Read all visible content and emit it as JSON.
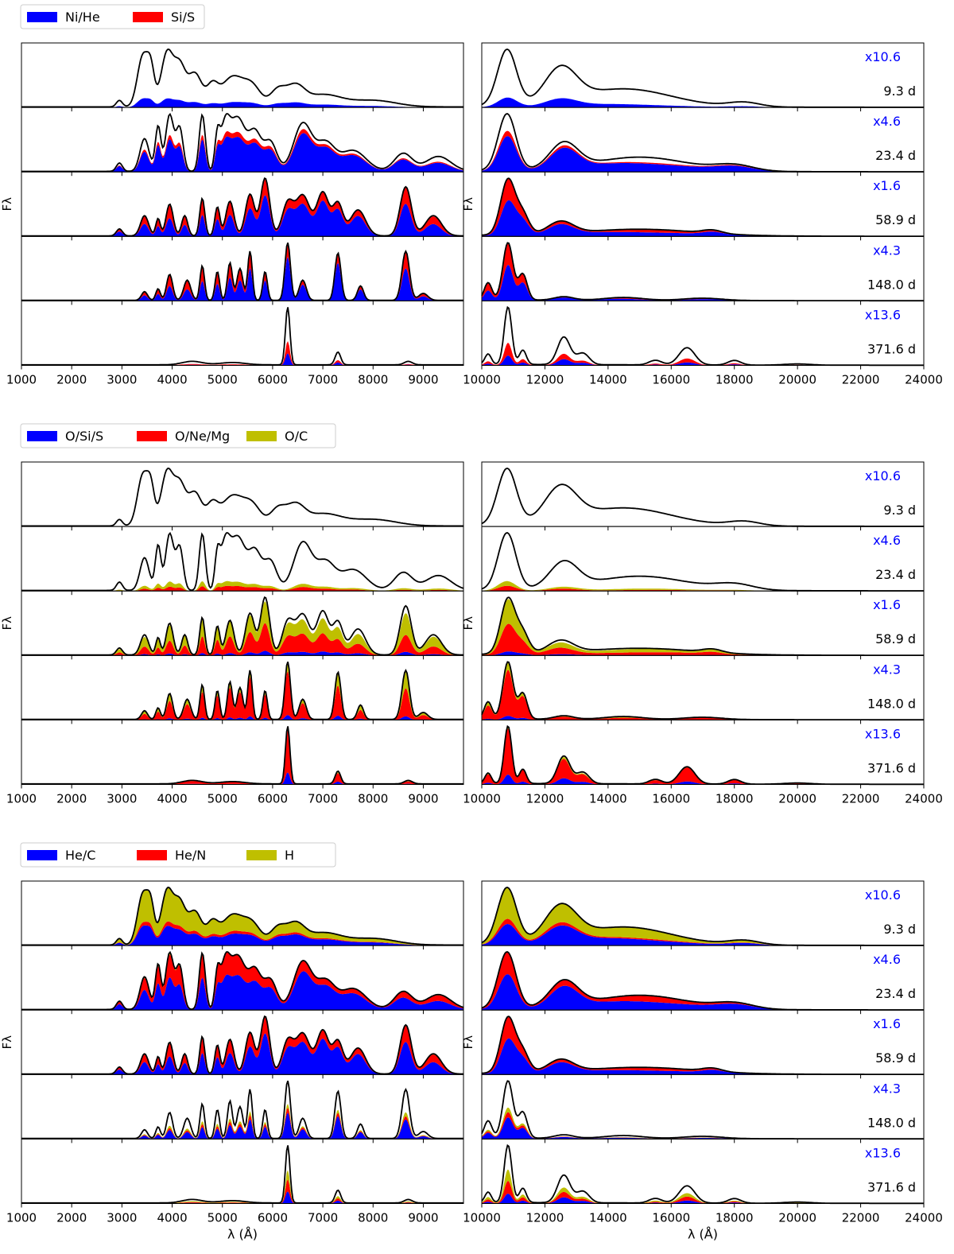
{
  "figure": {
    "ylabel": "Fλ",
    "xlabel": "λ (Å)",
    "epochs": [
      "9.3 d",
      "23.4 d",
      "58.9 d",
      "148.0 d",
      "371.6 d"
    ],
    "ir_scale_labels": [
      "x10.6",
      "x4.6",
      "x1.6",
      "x4.3",
      "x13.6"
    ],
    "colors": {
      "blue": "#0000ff",
      "red": "#ff0000",
      "olive": "#bfbf00",
      "spectrum": "#000000",
      "scale_text": "#0000ff"
    }
  },
  "chart_data": [
    {
      "type": "area",
      "title": "",
      "legend": {
        "placement": "top-left",
        "entries": [
          {
            "name": "Ni/He",
            "color": "#0000ff"
          },
          {
            "name": "Si/S",
            "color": "#ff0000"
          }
        ]
      },
      "optical_panel": {
        "xlim": [
          1000,
          9800
        ],
        "xticks": [
          1000,
          2000,
          3000,
          4000,
          5000,
          6000,
          7000,
          8000,
          9000
        ]
      },
      "ir_panel": {
        "xlim": [
          10000,
          24000
        ],
        "xticks": [
          10000,
          12000,
          14000,
          16000,
          18000,
          20000,
          22000,
          24000
        ]
      },
      "rows": [
        {
          "epoch": "9.3 d",
          "ir_scale": "x10.6",
          "series": [
            {
              "name": "Ni/He",
              "level": "weak"
            },
            {
              "name": "Si/S",
              "level": "none"
            }
          ]
        },
        {
          "epoch": "23.4 d",
          "ir_scale": "x4.6",
          "series": [
            {
              "name": "Ni/He",
              "level": "strong"
            },
            {
              "name": "Si/S",
              "level": "minor"
            }
          ]
        },
        {
          "epoch": "58.9 d",
          "ir_scale": "x1.6",
          "series": [
            {
              "name": "Ni/He",
              "level": "strong"
            },
            {
              "name": "Si/S",
              "level": "moderate"
            }
          ]
        },
        {
          "epoch": "148.0 d",
          "ir_scale": "x4.3",
          "series": [
            {
              "name": "Ni/He",
              "level": "strong"
            },
            {
              "name": "Si/S",
              "level": "moderate"
            }
          ]
        },
        {
          "epoch": "371.6 d",
          "ir_scale": "x13.6",
          "series": [
            {
              "name": "Ni/He",
              "level": "weak"
            },
            {
              "name": "Si/S",
              "level": "weak"
            }
          ]
        }
      ]
    },
    {
      "type": "area",
      "title": "",
      "legend": {
        "placement": "top-left",
        "entries": [
          {
            "name": "O/Si/S",
            "color": "#0000ff"
          },
          {
            "name": "O/Ne/Mg",
            "color": "#ff0000"
          },
          {
            "name": "O/C",
            "color": "#bfbf00"
          }
        ]
      },
      "optical_panel": {
        "xlim": [
          1000,
          9800
        ],
        "xticks": [
          1000,
          2000,
          3000,
          4000,
          5000,
          6000,
          7000,
          8000,
          9000
        ]
      },
      "ir_panel": {
        "xlim": [
          10000,
          24000
        ],
        "xticks": [
          10000,
          12000,
          14000,
          16000,
          18000,
          20000,
          22000,
          24000
        ]
      },
      "rows": [
        {
          "epoch": "9.3 d",
          "ir_scale": "x10.6",
          "series": [
            {
              "name": "O/Si/S",
              "level": "none"
            },
            {
              "name": "O/Ne/Mg",
              "level": "none"
            },
            {
              "name": "O/C",
              "level": "none"
            }
          ]
        },
        {
          "epoch": "23.4 d",
          "ir_scale": "x4.6",
          "series": [
            {
              "name": "O/Si/S",
              "level": "none"
            },
            {
              "name": "O/Ne/Mg",
              "level": "minor"
            },
            {
              "name": "O/C",
              "level": "minor"
            }
          ]
        },
        {
          "epoch": "58.9 d",
          "ir_scale": "x1.6",
          "series": [
            {
              "name": "O/Si/S",
              "level": "minor"
            },
            {
              "name": "O/Ne/Mg",
              "level": "moderate"
            },
            {
              "name": "O/C",
              "level": "moderate"
            }
          ]
        },
        {
          "epoch": "148.0 d",
          "ir_scale": "x4.3",
          "series": [
            {
              "name": "O/Si/S",
              "level": "minor"
            },
            {
              "name": "O/Ne/Mg",
              "level": "strong"
            },
            {
              "name": "O/C",
              "level": "moderate"
            }
          ]
        },
        {
          "epoch": "371.6 d",
          "ir_scale": "x13.6",
          "series": [
            {
              "name": "O/Si/S",
              "level": "weak"
            },
            {
              "name": "O/Ne/Mg",
              "level": "strong"
            },
            {
              "name": "O/C",
              "level": "minor"
            }
          ]
        }
      ]
    },
    {
      "type": "area",
      "title": "",
      "legend": {
        "placement": "top-left",
        "entries": [
          {
            "name": "He/C",
            "color": "#0000ff"
          },
          {
            "name": "He/N",
            "color": "#ff0000"
          },
          {
            "name": "H",
            "color": "#bfbf00"
          }
        ]
      },
      "optical_panel": {
        "xlim": [
          1000,
          9800
        ],
        "xticks": [
          1000,
          2000,
          3000,
          4000,
          5000,
          6000,
          7000,
          8000,
          9000
        ]
      },
      "ir_panel": {
        "xlim": [
          10000,
          24000
        ],
        "xticks": [
          10000,
          12000,
          14000,
          16000,
          18000,
          20000,
          22000,
          24000
        ]
      },
      "rows": [
        {
          "epoch": "9.3 d",
          "ir_scale": "x10.6",
          "series": [
            {
              "name": "He/C",
              "level": "moderate"
            },
            {
              "name": "He/N",
              "level": "minor"
            },
            {
              "name": "H",
              "level": "strong"
            }
          ]
        },
        {
          "epoch": "23.4 d",
          "ir_scale": "x4.6",
          "series": [
            {
              "name": "He/C",
              "level": "strong"
            },
            {
              "name": "He/N",
              "level": "moderate"
            },
            {
              "name": "H",
              "level": "moderate"
            }
          ]
        },
        {
          "epoch": "58.9 d",
          "ir_scale": "x1.6",
          "series": [
            {
              "name": "He/C",
              "level": "strong"
            },
            {
              "name": "He/N",
              "level": "moderate"
            },
            {
              "name": "H",
              "level": "minor"
            }
          ]
        },
        {
          "epoch": "148.0 d",
          "ir_scale": "x4.3",
          "series": [
            {
              "name": "He/C",
              "level": "moderate"
            },
            {
              "name": "He/N",
              "level": "minor"
            },
            {
              "name": "H",
              "level": "minor"
            }
          ]
        },
        {
          "epoch": "371.6 d",
          "ir_scale": "x13.6",
          "series": [
            {
              "name": "He/C",
              "level": "weak"
            },
            {
              "name": "He/N",
              "level": "weak"
            },
            {
              "name": "H",
              "level": "weak"
            }
          ]
        }
      ]
    }
  ]
}
